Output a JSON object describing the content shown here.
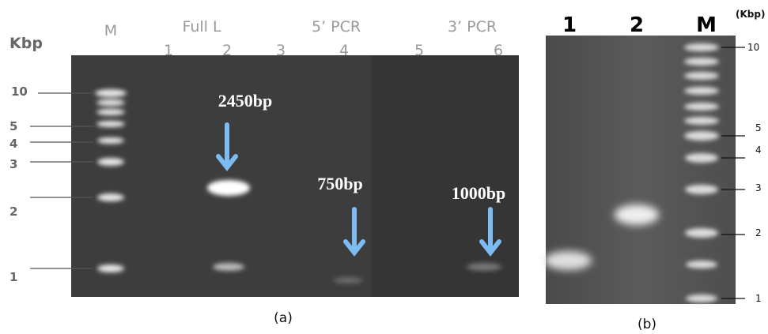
{
  "panel_a": {
    "unit": "Kbp",
    "marker_lane": "M",
    "groups": [
      "Full L",
      "5’ PCR",
      "3’ PCR"
    ],
    "lanes": [
      "1",
      "2",
      "3",
      "4",
      "5",
      "6"
    ],
    "sizes": [
      "10",
      "5",
      "4",
      "3",
      "2",
      "1"
    ],
    "band_labels": [
      "2450bp",
      "750bp",
      "1000bp"
    ],
    "caption": "(a)"
  },
  "panel_b": {
    "lanes": [
      "1",
      "2",
      "M"
    ],
    "unit": "(Kbp)",
    "sizes": [
      "10",
      "5",
      "4",
      "3",
      "2",
      "1"
    ],
    "caption": "(b)"
  }
}
